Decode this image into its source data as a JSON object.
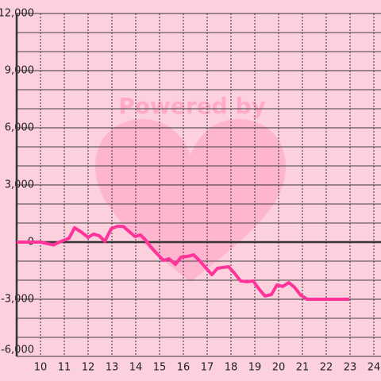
{
  "chart_data": {
    "type": "line",
    "watermark": "Powered by",
    "x": [
      9,
      10,
      10.55,
      10.8,
      11.2,
      11.43,
      11.7,
      12,
      12.23,
      12.47,
      12.7,
      12.97,
      13.23,
      13.47,
      13.7,
      13.97,
      14.2,
      14.4,
      14.63,
      14.9,
      15.17,
      15.4,
      15.67,
      15.9,
      16.17,
      16.43,
      16.67,
      16.9,
      17.2,
      17.43,
      17.67,
      17.9,
      18.17,
      18.4,
      18.67,
      18.93,
      19.2,
      19.43,
      19.7,
      19.93,
      20.17,
      20.43,
      20.67,
      20.93,
      21.2,
      22.97
    ],
    "series": [
      {
        "color": "#ff3399",
        "values": [
          0,
          0,
          -150,
          0,
          200,
          750,
          540,
          250,
          420,
          330,
          40,
          700,
          830,
          830,
          580,
          290,
          375,
          125,
          -250,
          -625,
          -960,
          -875,
          -1170,
          -790,
          -750,
          -670,
          -960,
          -1290,
          -1710,
          -1375,
          -1330,
          -1290,
          -1670,
          -2040,
          -2080,
          -2040,
          -2500,
          -2830,
          -2750,
          -2250,
          -2330,
          -2125,
          -2375,
          -2790,
          -3000,
          -3000
        ]
      }
    ],
    "xlim": [
      9,
      24.3
    ],
    "xticks": [
      10,
      11,
      12,
      13,
      14,
      15,
      16,
      17,
      18,
      19,
      20,
      21,
      22,
      23,
      24
    ],
    "ylim": [
      -6000,
      12000
    ],
    "yticks": [
      {
        "value": -6000,
        "label": "-6,000"
      },
      {
        "value": -3000,
        "label": "-3,000"
      },
      0,
      {
        "value": 3000,
        "label": "3,000"
      },
      {
        "value": 6000,
        "label": "6,000"
      },
      {
        "value": 9000,
        "label": "9,000"
      },
      {
        "value": 12000,
        "label": "12,000"
      }
    ],
    "yminor": [
      -5000,
      -4000,
      -2000,
      -1000,
      1000,
      2000,
      4000,
      5000,
      7000,
      8000,
      10000,
      11000
    ],
    "grid": true
  }
}
